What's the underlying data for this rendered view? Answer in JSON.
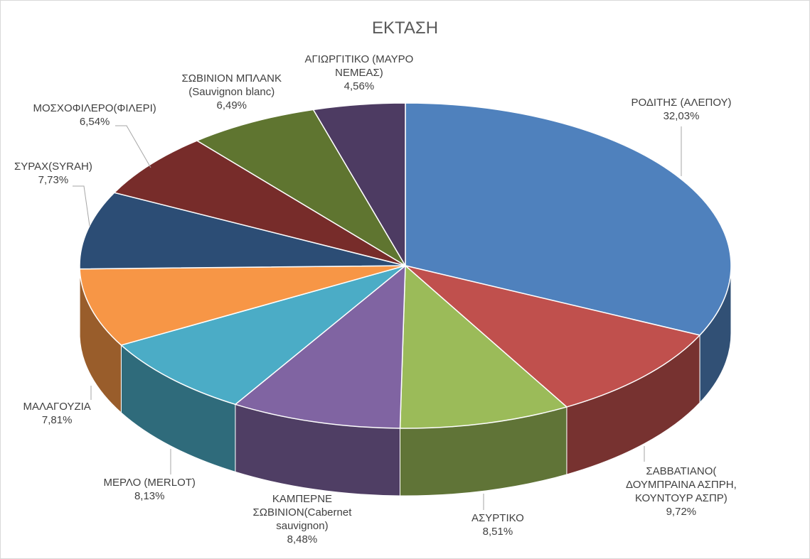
{
  "chart_data": {
    "type": "pie",
    "style": "3d",
    "title": "ΕΚΤΑΣΗ",
    "legend": "none",
    "slices": [
      {
        "label": [
          "ΡΟΔΙΤΗΣ (ΑΛΕΠΟΥ)"
        ],
        "value_label": "32,03%",
        "value": 32.03,
        "color": "#4f81bd"
      },
      {
        "label": [
          "ΣΑΒΒΑΤΙΑΝΟ(",
          "ΔΟΥΜΠΡΑΙΝΑ ΑΣΠΡΗ,",
          "ΚΟΥΝΤΟΥΡ ΑΣΠΡ)"
        ],
        "value_label": "9,72%",
        "value": 9.72,
        "color": "#c0504d"
      },
      {
        "label": [
          "ΑΣΥΡΤΙΚΟ"
        ],
        "value_label": "8,51%",
        "value": 8.51,
        "color": "#9bbb59"
      },
      {
        "label": [
          "ΚΑΜΠΕΡΝΕ",
          "ΣΩΒΙΝΙΟΝ(Cabernet",
          "sauvignon)"
        ],
        "value_label": "8,48%",
        "value": 8.48,
        "color": "#8064a2"
      },
      {
        "label": [
          "ΜΕΡΛΟ (MERLOT)"
        ],
        "value_label": "8,13%",
        "value": 8.13,
        "color": "#4bacc6"
      },
      {
        "label": [
          "ΜΑΛΑΓΟΥΖΙΑ"
        ],
        "value_label": "7,81%",
        "value": 7.81,
        "color": "#f79646"
      },
      {
        "label": [
          "ΣΥΡΑΧ(SYRAH)"
        ],
        "value_label": "7,73%",
        "value": 7.73,
        "color": "#2c4d75"
      },
      {
        "label": [
          "ΜΟΣΧΟΦΙΛΕΡΟ(ΦΙΛΕΡΙ)"
        ],
        "value_label": "6,54%",
        "value": 6.54,
        "color": "#772c2a"
      },
      {
        "label": [
          "ΣΩΒΙΝΙΟΝ ΜΠΛΑΝΚ",
          "(Sauvignon blanc)"
        ],
        "value_label": "6,49%",
        "value": 6.49,
        "color": "#5f7530"
      },
      {
        "label": [
          "ΑΓΙΩΡΓΙΤΙΚΟ (ΜΑΥΡΟ",
          "ΝΕΜΕΑΣ)"
        ],
        "value_label": "4,56%",
        "value": 4.56,
        "color": "#4d3b62"
      }
    ]
  }
}
